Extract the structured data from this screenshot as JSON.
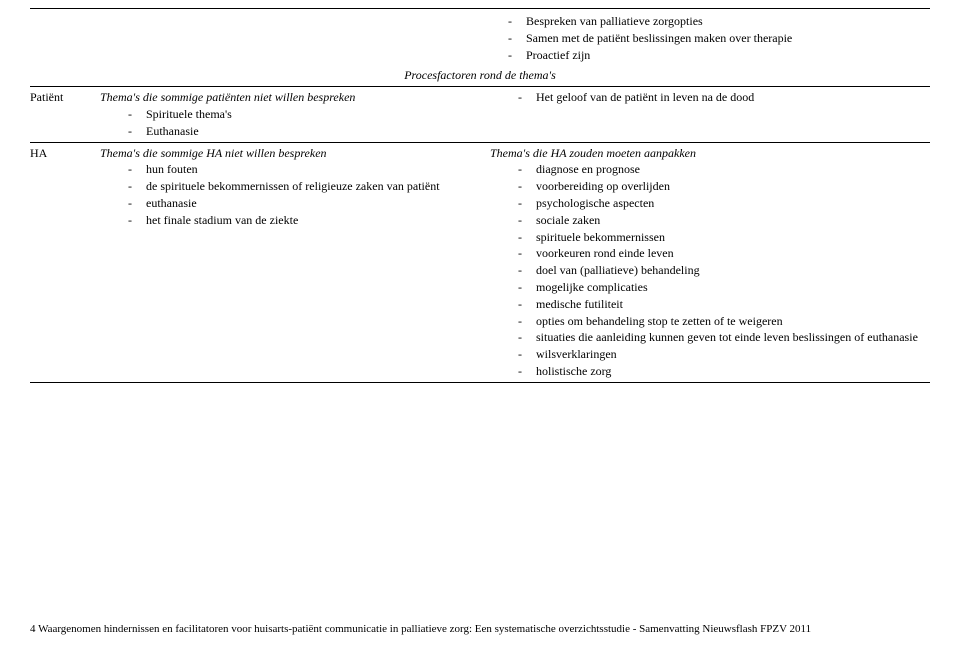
{
  "topRow": {
    "rightItems": [
      "Bespreken van palliatieve zorgopties",
      "Samen met de patiënt beslissingen maken over therapie",
      "Proactief zijn"
    ]
  },
  "sectionHeader": "Procesfactoren rond de thema's",
  "rows": [
    {
      "label": "Patiënt",
      "left": {
        "heading": "Thema's die sommige patiënten niet willen bespreken",
        "items": [
          "Spirituele thema's",
          "Euthanasie"
        ]
      },
      "right": {
        "items": [
          "Het geloof van de patiënt in leven na de dood"
        ]
      }
    },
    {
      "label": "HA",
      "left": {
        "heading": "Thema's die sommige HA niet willen bespreken",
        "items": [
          "hun fouten",
          "de spirituele bekommernissen of religieuze zaken van patiënt",
          "euthanasie",
          "het finale stadium van de ziekte"
        ]
      },
      "right": {
        "heading": "Thema's die HA zouden moeten aanpakken",
        "items": [
          "diagnose en prognose",
          "voorbereiding op overlijden",
          "psychologische aspecten",
          "sociale zaken",
          "spirituele bekommernissen",
          "voorkeuren rond einde leven",
          "doel van (palliatieve) behandeling",
          "mogelijke complicaties",
          "medische futiliteit",
          "opties om behandeling stop te zetten of te weigeren",
          "situaties die aanleiding kunnen geven tot einde leven beslissingen of euthanasie",
          "wilsverklaringen",
          "holistische zorg"
        ]
      }
    }
  ],
  "footer": {
    "pageNum": "4",
    "text": "Waargenomen hindernissen en facilitatoren voor huisarts-patiënt communicatie in palliatieve zorg: Een systematische overzichtsstudie - Samenvatting Nieuwsflash FPZV 2011"
  }
}
